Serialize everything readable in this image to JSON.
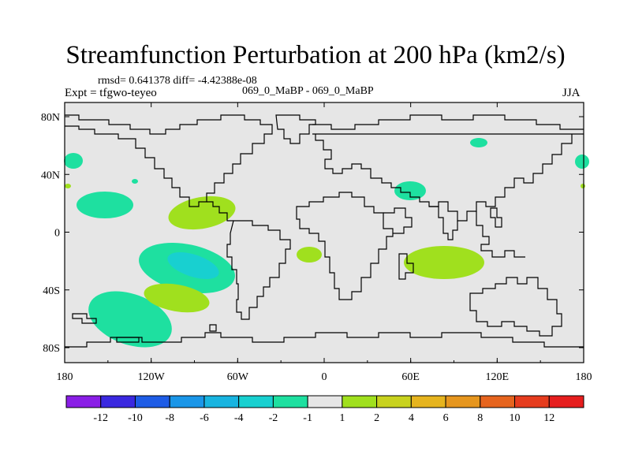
{
  "title": "Streamfunction Perturbation at 200 hPa (km2/s)",
  "stats": "rmsd= 0.641378 diff= -4.42388e-08",
  "expt": "Expt = tfgwo-teyeo",
  "comparison": "069_0_MaBP - 069_0_MaBP",
  "season": "JJA",
  "x_ticks": [
    "180",
    "120W",
    "60W",
    "0",
    "60E",
    "120E",
    "180"
  ],
  "y_ticks": [
    "80N",
    "40N",
    "0",
    "40S",
    "80S"
  ],
  "colorbar": {
    "labels": [
      "-12",
      "-10",
      "-8",
      "-6",
      "-4",
      "-2",
      "-1",
      "1",
      "2",
      "4",
      "6",
      "8",
      "10",
      "12"
    ],
    "colors": [
      "#8a1ee6",
      "#3a28e0",
      "#1e5ce6",
      "#1a96e8",
      "#18b4e0",
      "#18d0d0",
      "#1ee0a0",
      "#e6e6e6",
      "#a0e01e",
      "#c8d21e",
      "#e6b41e",
      "#e6961e",
      "#e6641e",
      "#e63c1e",
      "#e61e1e"
    ]
  },
  "colors": {
    "background_fill": "#e6e6e6",
    "green_pos": "#a0e01e",
    "teal_neg": "#1ee0a0",
    "cyan_neg": "#18d0d0"
  }
}
